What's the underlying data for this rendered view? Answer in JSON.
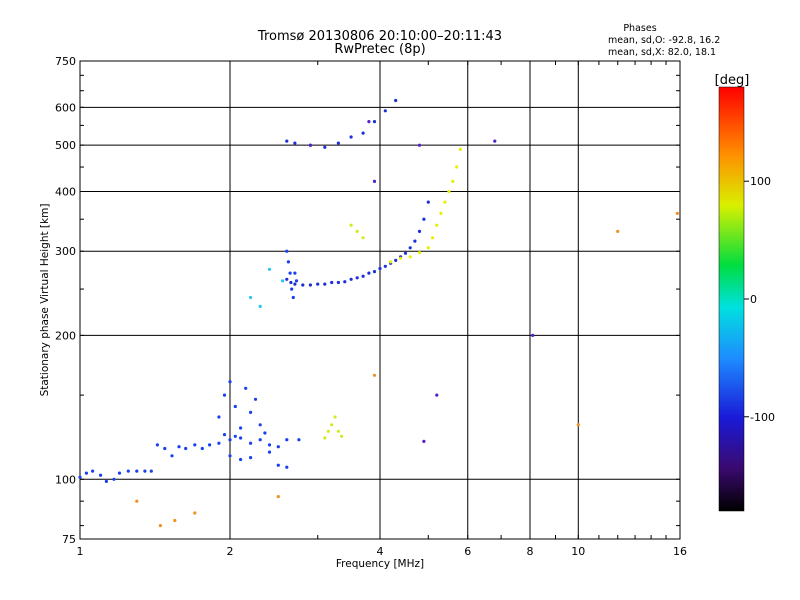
{
  "chart_data": {
    "type": "scatter",
    "title": "Tromsø 20130806 20:10:00–20:11:43",
    "subtitle": "RwPretec (8p)",
    "xlabel": "Frequency [MHz]",
    "ylabel": "Stationary phase Virtual Height [km]",
    "x_scale": "log",
    "y_scale": "log",
    "xlim": [
      1,
      16
    ],
    "ylim": [
      75,
      750
    ],
    "x_ticks": [
      1,
      2,
      4,
      6,
      8,
      10,
      16
    ],
    "y_ticks": [
      75,
      100,
      200,
      300,
      400,
      500,
      600,
      750
    ],
    "grid": true,
    "color_scale": {
      "label": "[deg]",
      "range": [
        -180,
        180
      ],
      "ticks": [
        100,
        0,
        -100
      ],
      "colormap": "rainbow: black→purple→blue→cyan→green→yellow→orange→red"
    },
    "stats": {
      "heading": "Phases",
      "line_o": "mean, sd,O: -92.8, 16.2",
      "line_x": "mean, sd,X:  82.0, 18.1"
    },
    "traces": [
      {
        "name": "",
        "color": "#1a3ff0",
        "points": [
          [
            1.0,
            101
          ],
          [
            1.03,
            103
          ],
          [
            1.06,
            104
          ],
          [
            1.1,
            102
          ],
          [
            1.13,
            99
          ],
          [
            1.17,
            100
          ],
          [
            1.2,
            103
          ],
          [
            1.25,
            104
          ],
          [
            1.3,
            104
          ],
          [
            1.35,
            104
          ],
          [
            1.39,
            104
          ],
          [
            1.43,
            118
          ],
          [
            1.48,
            116
          ],
          [
            1.53,
            112
          ],
          [
            1.58,
            117
          ],
          [
            1.63,
            116
          ],
          [
            1.7,
            118
          ],
          [
            1.76,
            116
          ],
          [
            1.82,
            118
          ],
          [
            1.9,
            119
          ],
          [
            1.95,
            124
          ],
          [
            2.0,
            121
          ],
          [
            2.05,
            123
          ],
          [
            2.1,
            122
          ],
          [
            2.2,
            119
          ],
          [
            2.3,
            121
          ],
          [
            2.4,
            118
          ],
          [
            2.5,
            117
          ],
          [
            2.6,
            121
          ],
          [
            2.75,
            121
          ]
        ]
      },
      {
        "name": "",
        "color": "#1a3ff0",
        "points": [
          [
            1.9,
            135
          ],
          [
            1.95,
            150
          ],
          [
            2.0,
            160
          ],
          [
            2.05,
            142
          ],
          [
            2.1,
            128
          ],
          [
            2.15,
            155
          ],
          [
            2.2,
            138
          ],
          [
            2.25,
            147
          ],
          [
            2.3,
            130
          ],
          [
            2.35,
            125
          ],
          [
            2.4,
            114
          ],
          [
            2.5,
            107
          ],
          [
            2.6,
            106
          ],
          [
            2.0,
            112
          ],
          [
            2.1,
            110
          ],
          [
            2.2,
            111
          ]
        ]
      },
      {
        "name": "",
        "color": "#1c2fd8",
        "points": [
          [
            2.6,
            262
          ],
          [
            2.65,
            258
          ],
          [
            2.7,
            256
          ],
          [
            2.8,
            255
          ],
          [
            2.9,
            255
          ],
          [
            3.0,
            256
          ],
          [
            3.1,
            256
          ],
          [
            3.2,
            258
          ],
          [
            3.3,
            258
          ],
          [
            3.4,
            259
          ],
          [
            3.5,
            262
          ],
          [
            3.6,
            264
          ],
          [
            3.7,
            266
          ],
          [
            3.8,
            270
          ],
          [
            3.9,
            272
          ],
          [
            4.0,
            276
          ],
          [
            4.1,
            279
          ],
          [
            4.2,
            283
          ],
          [
            4.3,
            287
          ],
          [
            4.4,
            292
          ],
          [
            4.5,
            297
          ],
          [
            4.6,
            305
          ],
          [
            4.7,
            315
          ],
          [
            4.8,
            330
          ],
          [
            4.9,
            350
          ],
          [
            5.0,
            380
          ]
        ]
      },
      {
        "name": "",
        "color": "#1a3ff0",
        "points": [
          [
            2.6,
            300
          ],
          [
            2.62,
            285
          ],
          [
            2.64,
            270
          ],
          [
            2.66,
            250
          ],
          [
            2.68,
            240
          ],
          [
            2.7,
            270
          ],
          [
            2.72,
            260
          ]
        ]
      },
      {
        "name": "",
        "color": "#1c2fd8",
        "points": [
          [
            2.6,
            510
          ],
          [
            2.7,
            505
          ],
          [
            2.9,
            500
          ],
          [
            3.1,
            495
          ],
          [
            3.3,
            505
          ],
          [
            3.5,
            520
          ],
          [
            3.7,
            530
          ],
          [
            3.9,
            560
          ],
          [
            4.1,
            590
          ],
          [
            4.3,
            620
          ]
        ]
      },
      {
        "name": "",
        "color": "#e8f000",
        "points": [
          [
            4.2,
            285
          ],
          [
            4.4,
            290
          ],
          [
            4.6,
            292
          ],
          [
            4.8,
            298
          ],
          [
            5.0,
            305
          ],
          [
            5.1,
            320
          ],
          [
            5.2,
            340
          ],
          [
            5.3,
            360
          ],
          [
            5.4,
            380
          ],
          [
            5.5,
            400
          ],
          [
            5.6,
            420
          ],
          [
            5.7,
            450
          ],
          [
            5.8,
            490
          ]
        ]
      },
      {
        "name": "",
        "color": "#d8e820",
        "points": [
          [
            3.1,
            122
          ],
          [
            3.15,
            126
          ],
          [
            3.2,
            130
          ],
          [
            3.25,
            135
          ],
          [
            3.3,
            126
          ],
          [
            3.35,
            123
          ],
          [
            3.5,
            340
          ],
          [
            3.6,
            330
          ],
          [
            3.7,
            320
          ]
        ]
      },
      {
        "name": "",
        "color": "#28c8f0",
        "points": [
          [
            2.2,
            240
          ],
          [
            2.4,
            275
          ],
          [
            2.3,
            230
          ],
          [
            2.55,
            260
          ]
        ]
      },
      {
        "name": "",
        "color": "#f09020",
        "points": [
          [
            1.45,
            80
          ],
          [
            1.55,
            82
          ],
          [
            1.3,
            90
          ],
          [
            2.5,
            92
          ],
          [
            1.7,
            85
          ],
          [
            10.0,
            130
          ],
          [
            12.0,
            330
          ],
          [
            15.8,
            360
          ],
          [
            3.9,
            165
          ]
        ]
      },
      {
        "name": "",
        "color": "#5020c8",
        "points": [
          [
            3.8,
            560
          ],
          [
            3.9,
            420
          ],
          [
            4.8,
            500
          ],
          [
            6.8,
            510
          ],
          [
            5.2,
            150
          ],
          [
            2.9,
            500
          ],
          [
            8.1,
            200
          ],
          [
            4.9,
            120
          ]
        ]
      }
    ]
  }
}
